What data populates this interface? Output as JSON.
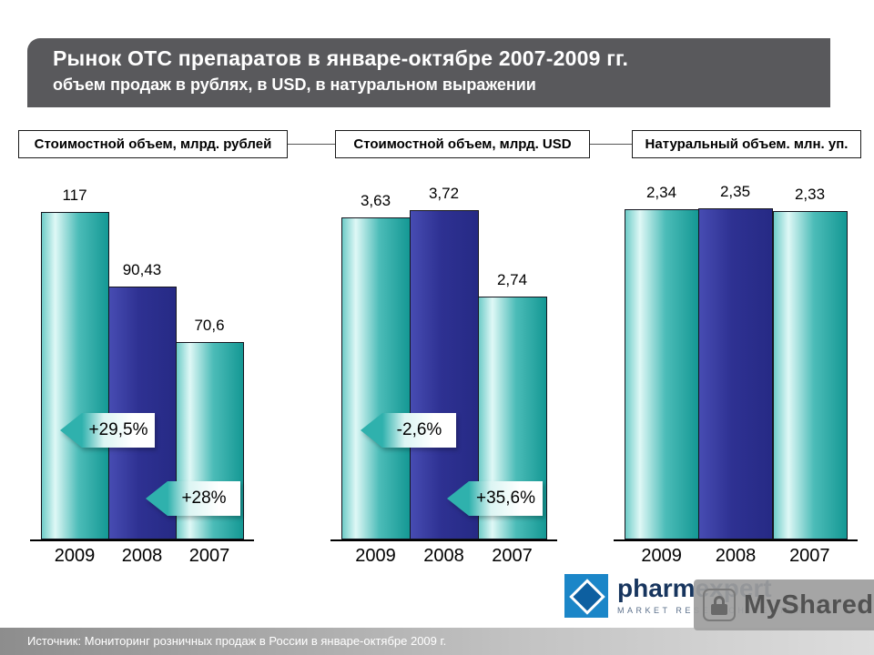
{
  "slide": {
    "title": "Рынок ОТС препаратов в январе-октябре 2007-2009 гг.",
    "subtitle": "объем продаж в рублях, в USD, в натуральном выражении",
    "footer": "Источник: Мониторинг розничных продаж в России в январе-октябре 2009 г."
  },
  "logo": {
    "name": "pharmexpert",
    "tagline": "MARKET RESEARCH CENTER"
  },
  "watermark": {
    "text": "MyShared",
    "icon": "lock-icon"
  },
  "colors": {
    "teal": "#2aa9a5",
    "blue": "#2e3192",
    "header_bg": "#59595c"
  },
  "chart_data": [
    {
      "type": "bar",
      "title": "Стоимостной объем, млрд. рублей",
      "categories": [
        "2009",
        "2008",
        "2007"
      ],
      "values": [
        117,
        90.43,
        70.6
      ],
      "value_labels": [
        "117",
        "90,43",
        "70,6"
      ],
      "ylim": [
        0,
        122
      ],
      "grid": false,
      "annotations": [
        "+29,5%",
        "+28%"
      ]
    },
    {
      "type": "bar",
      "title": "Стоимостной объем, млрд. USD",
      "categories": [
        "2009",
        "2008",
        "2007"
      ],
      "values": [
        3.63,
        3.72,
        2.74
      ],
      "value_labels": [
        "3,63",
        "3,72",
        "2,74"
      ],
      "ylim": [
        0,
        3.85
      ],
      "grid": false,
      "annotations": [
        "-2,6%",
        "+35,6%"
      ]
    },
    {
      "type": "bar",
      "title": "Натуральный объем. млн. уп.",
      "categories": [
        "2009",
        "2008",
        "2007"
      ],
      "values": [
        2.34,
        2.35,
        2.33
      ],
      "value_labels": [
        "2,34",
        "2,35",
        "2,33"
      ],
      "ylim": [
        0,
        2.42
      ],
      "grid": false,
      "annotations": []
    }
  ]
}
